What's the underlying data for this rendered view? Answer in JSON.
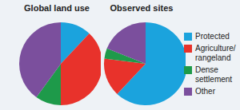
{
  "chart_data": [
    {
      "type": "pie",
      "title": "Global land use",
      "categories": [
        "Protected",
        "Agriculture/rangeland",
        "Dense settlement",
        "Other"
      ],
      "values": [
        12,
        38,
        10,
        40
      ],
      "colors": [
        "#1ba3dd",
        "#e8322b",
        "#1e9a4a",
        "#7b4f9d"
      ]
    },
    {
      "type": "pie",
      "title": "Observed sites",
      "categories": [
        "Protected",
        "Agriculture/rangeland",
        "Dense settlement",
        "Other"
      ],
      "values": [
        62,
        15,
        4,
        19
      ],
      "colors": [
        "#1ba3dd",
        "#e8322b",
        "#1e9a4a",
        "#7b4f9d"
      ],
      "legend": "right"
    }
  ]
}
